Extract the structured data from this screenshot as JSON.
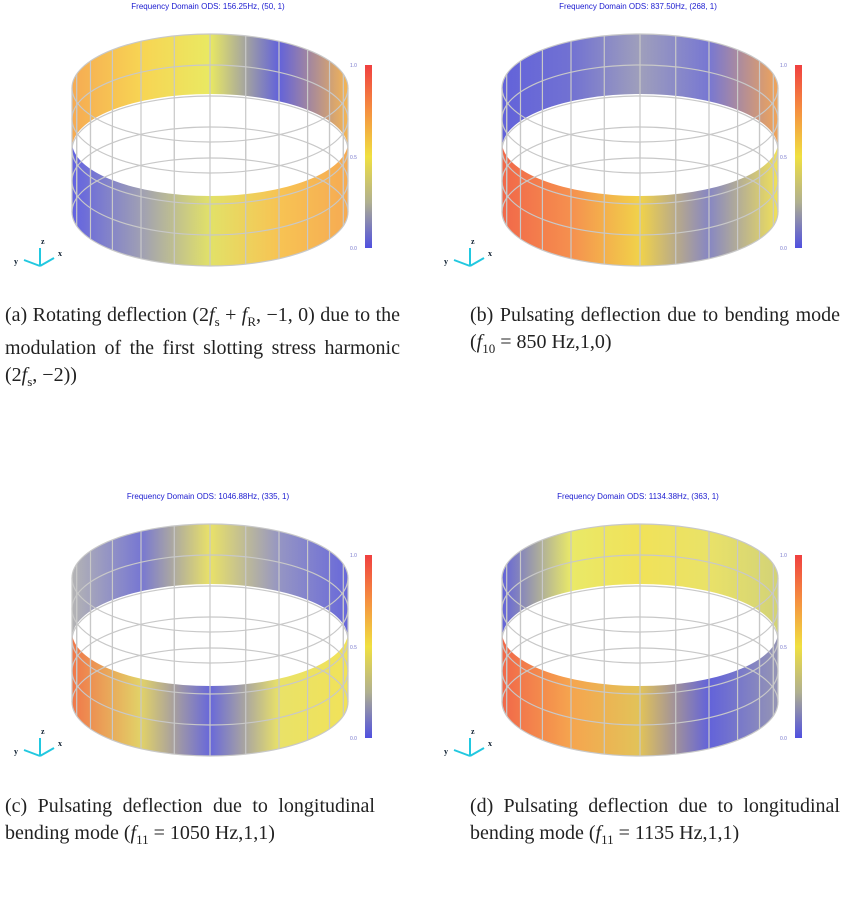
{
  "panels": [
    {
      "title": "Frequency Domain ODS: 156.25Hz, (50, 1)",
      "colorbar_ticks": [
        "1.0",
        "0.5",
        "0.0"
      ],
      "axes": [
        "y",
        "z",
        "x"
      ],
      "caption": [
        "(a)",
        " Rotating deflection (2",
        "f",
        "s",
        " + ",
        "f",
        "R",
        ", −1, 0) due to the modulation of the first slotting stress harmonic (2",
        "f",
        "s",
        ", −2))"
      ]
    },
    {
      "title": "Frequency Domain ODS: 837.50Hz, (268, 1)",
      "colorbar_ticks": [
        "1.0",
        "0.5",
        "0.0"
      ],
      "axes": [
        "y",
        "z",
        "x"
      ],
      "caption": [
        "(b)",
        " Pulsating deflection due to bending mode (",
        "f",
        "10",
        " = 850 Hz,1,0)"
      ]
    },
    {
      "title": "Frequency Domain ODS: 1046.88Hz, (335, 1)",
      "colorbar_ticks": [
        "1.0",
        "0.5",
        "0.0"
      ],
      "axes": [
        "y",
        "z",
        "x"
      ],
      "caption": [
        "(c)",
        " Pulsating deflection due to longitudinal bending mode (",
        "f",
        "11",
        " = 1050 Hz,1,1)"
      ]
    },
    {
      "title": "Frequency Domain ODS: 1134.38Hz, (363, 1)",
      "colorbar_ticks": [
        "1.0",
        "0.5",
        "0.0"
      ],
      "axes": [
        "y",
        "z",
        "x"
      ],
      "caption": [
        "(d)",
        " Pulsating deflection due to longitudinal bending mode (",
        "f",
        "11",
        " = 1135 Hz,1,1)"
      ]
    }
  ]
}
